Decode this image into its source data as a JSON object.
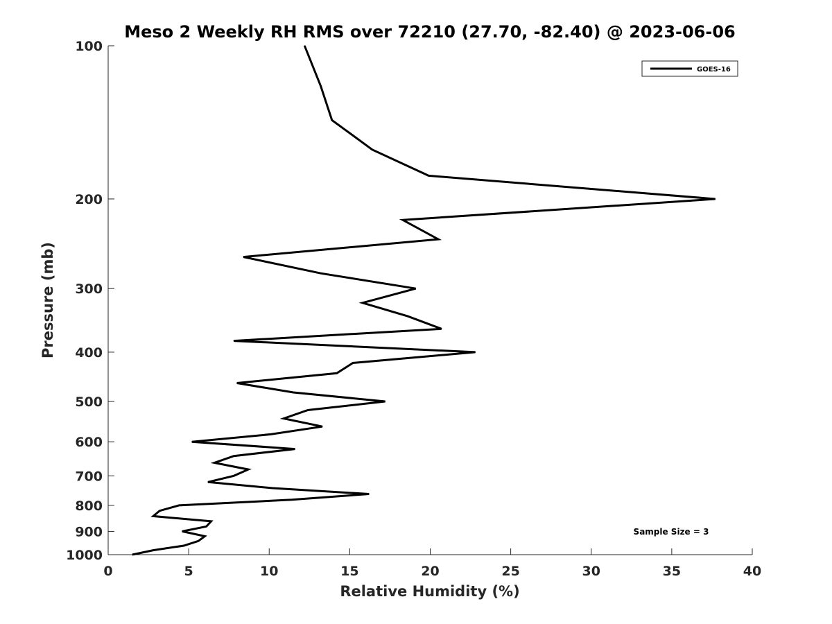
{
  "chart_data": {
    "type": "line",
    "title": "Meso 2 Weekly RH RMS over 72210 (27.70, -82.40) @ 2023-06-06",
    "xlabel": "Relative Humidity (%)",
    "ylabel": "Pressure (mb)",
    "xlim": [
      0,
      40
    ],
    "ylim": [
      100,
      1000
    ],
    "y_scale": "log",
    "y_reversed": true,
    "grid": false,
    "legend_position": "top-right",
    "x_ticks": [
      0,
      5,
      10,
      15,
      20,
      25,
      30,
      35,
      40
    ],
    "y_ticks": [
      100,
      200,
      300,
      400,
      500,
      600,
      700,
      800,
      900,
      1000
    ],
    "series": [
      {
        "name": "GOES-16",
        "color": "#000000",
        "x": [
          12.2,
          13.2,
          13.9,
          16.4,
          19.9,
          37.7,
          18.3,
          20.5,
          8.4,
          13.2,
          19.1,
          15.8,
          18.6,
          20.7,
          7.8,
          22.8,
          15.2,
          14.2,
          8.0,
          11.5,
          17.2,
          12.4,
          10.9,
          13.3,
          10.1,
          5.2,
          11.6,
          7.8,
          6.6,
          8.7,
          7.8,
          6.2,
          10.2,
          16.2,
          11.4,
          4.4,
          3.2,
          2.8,
          6.4,
          6.1,
          4.6,
          6.0,
          5.6,
          4.7,
          2.8,
          1.5
        ],
        "y": [
          100,
          120,
          140,
          160,
          180,
          200,
          220,
          240,
          260,
          280,
          300,
          320,
          340,
          360,
          380,
          400,
          420,
          440,
          460,
          480,
          500,
          520,
          540,
          560,
          580,
          600,
          620,
          640,
          660,
          680,
          700,
          720,
          740,
          760,
          780,
          800,
          820,
          840,
          860,
          880,
          900,
          920,
          940,
          960,
          980,
          1000
        ]
      }
    ],
    "annotations": [
      {
        "text": "Sample Size = 3",
        "position": "bottom-right"
      }
    ]
  }
}
